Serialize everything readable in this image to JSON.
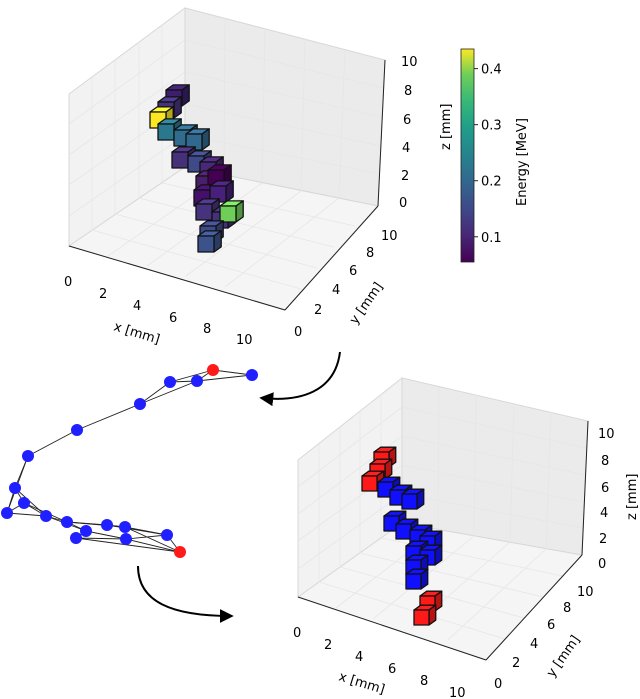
{
  "top_plot": {
    "x_label": "x [mm]",
    "y_label": "y [mm]",
    "z_label": "z [mm]",
    "x_ticks": [
      "0",
      "2",
      "4",
      "6",
      "8",
      "10"
    ],
    "y_ticks": [
      "0",
      "2",
      "4",
      "6",
      "8",
      "10"
    ],
    "z_ticks": [
      "0",
      "2",
      "4",
      "6",
      "8",
      "10"
    ],
    "colorbar": {
      "label": "Energy [MeV]",
      "ticks": [
        "0.1",
        "0.2",
        "0.3",
        "0.4"
      ],
      "range": [
        0.055,
        0.435
      ],
      "colormap": "viridis"
    }
  },
  "bottom_plot": {
    "x_label": "x [mm]",
    "y_label": "y [mm]",
    "z_label": "z [mm]",
    "x_ticks": [
      "0",
      "2",
      "4",
      "6",
      "8",
      "10"
    ],
    "y_ticks": [
      "0",
      "2",
      "4",
      "6",
      "8",
      "10"
    ],
    "z_ticks": [
      "0",
      "2",
      "4",
      "6",
      "8",
      "10"
    ],
    "colors": {
      "track": "#1010ff",
      "endpoint": "#ff1a1a"
    }
  },
  "graph": {
    "node_color": "#1f1fff",
    "endpoint_color": "#ff1a1a",
    "edge_color": "#222222"
  }
}
